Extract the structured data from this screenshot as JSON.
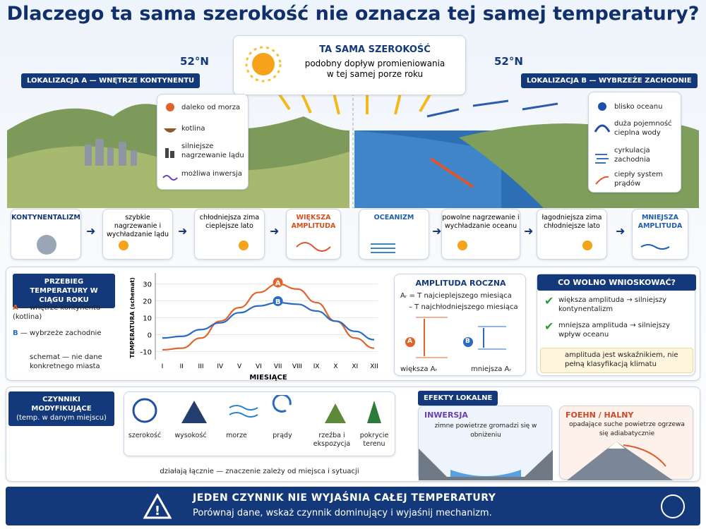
{
  "title": "Dlaczego ta sama szerokość nie oznacza tej samej temperatury?",
  "top_box": {
    "heading": "TA SAMA SZEROKOŚĆ",
    "text": "podobny dopływ promieniowania w tej samej porze roku"
  },
  "lat_left": "52°N",
  "lat_right": "52°N",
  "location_a": {
    "label": "LOKALIZACJA A — WNĘTRZE KONTYNENTU",
    "items": [
      "daleko od morza",
      "kotlina",
      "silniejsze nagrzewanie lądu",
      "możliwa inwersja"
    ]
  },
  "location_b": {
    "label": "LOKALIZACJA B — WYBRZEŻE ZACHODNIE",
    "items": [
      "blisko oceanu",
      "duża pojemność cieplna wody",
      "cyrkulacja zachodnia",
      "ciepły system prądów"
    ]
  },
  "flow_a": [
    "KONTYNENTALIZM",
    "szybkie nagrzewanie i wychładzanie lądu",
    "chłodniejsza zima cieplejsze lato",
    "WIĘKSZA AMPLITUDA"
  ],
  "flow_b": [
    "OCEANIZM",
    "powolne nagrzewanie i wychładzanie oceanu",
    "łagodniejsza zima chłodniejsze lato",
    "MNIEJSZA AMPLITUDA"
  ],
  "course": {
    "title": "PRZEBIEG TEMPERATURY W CIĄGU ROKU",
    "legend": [
      {
        "key": "A",
        "text": "— wnętrze kontynentu (kotlina)"
      },
      {
        "key": "B",
        "text": "— wybrzeże zachodnie"
      }
    ],
    "note": "schemat — nie dane konkretnego miasta"
  },
  "chart": {
    "type": "line",
    "ylabel": "TEMPERATURA (schemat)",
    "xlabel": "MIESIĄCE",
    "categories": [
      "I",
      "II",
      "III",
      "IV",
      "V",
      "VI",
      "VII",
      "VIII",
      "IX",
      "X",
      "XI",
      "XII"
    ],
    "ylim": [
      -14,
      34
    ],
    "yticks": [
      30,
      20,
      10,
      0,
      -10
    ],
    "grid": true,
    "series": [
      {
        "name": "A",
        "color": "#e0642a",
        "values": [
          -9,
          -8,
          -2,
          8,
          16,
          25,
          30,
          27,
          19,
          8,
          -2,
          -8
        ]
      },
      {
        "name": "B",
        "color": "#2a6bc0",
        "values": [
          -2,
          -1,
          3,
          7,
          13,
          17,
          19,
          18,
          14,
          8,
          2,
          -3
        ]
      }
    ]
  },
  "amplitude": {
    "title": "AMPLITUDA ROCZNA",
    "line1": "Aᵣ = T najcieplejszego miesiąca",
    "line2": "– T najchłodniejszego miesiąca",
    "a": "A",
    "b": "B",
    "bigger": "większa Aᵣ",
    "smaller": "mniejsza Aᵣ"
  },
  "conclusions": {
    "title": "CO WOLNO WNIOSKOWAĆ?",
    "items": [
      "większa amplituda → silniejszy kontynentalizm",
      "mniejsza amplituda → silniejszy wpływ oceanu"
    ],
    "warning": "amplituda jest wskaźnikiem, nie pełną klasyfikacją klimatu"
  },
  "factors": {
    "title": "CZYNNIKI MODYFIKUJĄCE",
    "subtitle": "(temp. w danym miejscu)",
    "items": [
      "szerokość",
      "wysokość",
      "morze",
      "prądy",
      "rzeźba i ekspozycja",
      "pokrycie terenu"
    ],
    "note": "działają łącznie — znaczenie zależy od miejsca i sytuacji"
  },
  "local": {
    "title": "EFEKTY LOKALNE",
    "inversion": {
      "title": "INWERSJA",
      "text": "zimne powietrze gromadzi się w obniżeniu"
    },
    "foehn": {
      "title": "FOEHN / HALNY",
      "text": "opadające suche powietrze ogrzewa się adiabatycznie"
    }
  },
  "footer": {
    "title": "JEDEN CZYNNIK NIE WYJAŚNIA CAŁEJ TEMPERATURY",
    "text": "Porównaj dane, wskaż czynnik dominujący i wyjaśnij mechanizm."
  }
}
